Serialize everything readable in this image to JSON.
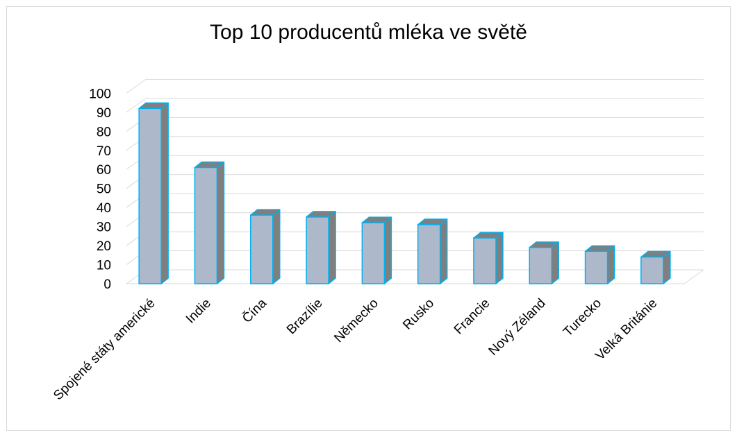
{
  "chart_data": {
    "type": "bar",
    "title": "Top 10 producentů mléka ve světě",
    "categories": [
      "Spojené státy americké",
      "Indie",
      "Čína",
      "Brazílie",
      "Německo",
      "Rusko",
      "Francie",
      "Nový Zéland",
      "Turecko",
      "Velká Británie"
    ],
    "values": [
      92,
      61,
      36,
      35,
      32,
      31,
      24,
      19,
      17,
      14
    ],
    "ylim": [
      0,
      100
    ],
    "yticks": [
      0,
      10,
      20,
      30,
      40,
      50,
      60,
      70,
      80,
      90,
      100
    ],
    "grid": true,
    "legend": "none",
    "style": "3d-column",
    "colors": {
      "bar_front": "#adb9ca",
      "bar_side": "#7f7f7f",
      "bar_top": "#7f7f7f",
      "bar_edge": "#00b0f0",
      "grid": "#d9d9d9"
    }
  }
}
